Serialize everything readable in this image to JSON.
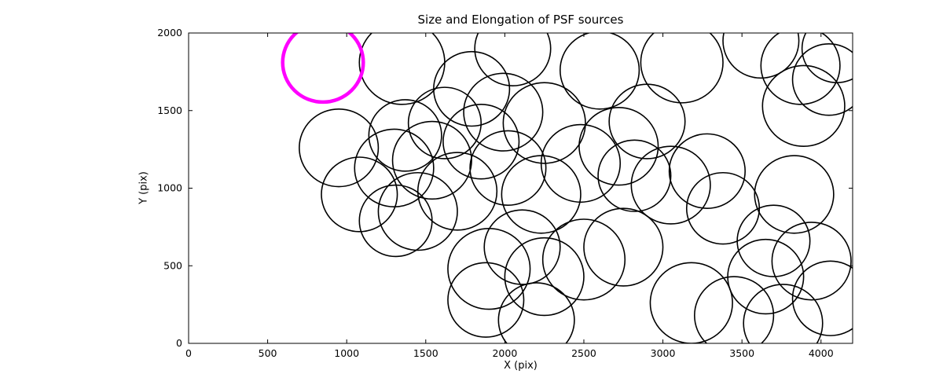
{
  "title": "Size and Elongation of PSF sources",
  "xlabel": "X (pix)",
  "ylabel": "Y (pix)",
  "chart_data": {
    "type": "scatter",
    "title": "Size and Elongation of PSF sources",
    "xlabel": "X (pix)",
    "ylabel": "Y (pix)",
    "xlim": [
      0,
      4200
    ],
    "ylim": [
      0,
      2000
    ],
    "xticks": [
      0,
      500,
      1000,
      1500,
      2000,
      2500,
      3000,
      3500,
      4000
    ],
    "yticks": [
      0,
      500,
      1000,
      1500,
      2000
    ],
    "grid": false,
    "legend": "none",
    "circle_color": "#000000",
    "circle_linewidth": 1.6,
    "highlight_color": "#ff00ff",
    "highlight_linewidth": 4.5,
    "circles": [
      {
        "x": 1350,
        "y": 1810,
        "r": 270
      },
      {
        "x": 1790,
        "y": 1640,
        "r": 240
      },
      {
        "x": 2050,
        "y": 1900,
        "r": 240
      },
      {
        "x": 1990,
        "y": 1490,
        "r": 250
      },
      {
        "x": 1850,
        "y": 1300,
        "r": 240
      },
      {
        "x": 2250,
        "y": 1420,
        "r": 260
      },
      {
        "x": 2600,
        "y": 1760,
        "r": 250
      },
      {
        "x": 2900,
        "y": 1430,
        "r": 240
      },
      {
        "x": 3120,
        "y": 1810,
        "r": 260
      },
      {
        "x": 3620,
        "y": 1950,
        "r": 240
      },
      {
        "x": 3870,
        "y": 1790,
        "r": 250
      },
      {
        "x": 3890,
        "y": 1530,
        "r": 260
      },
      {
        "x": 4050,
        "y": 1700,
        "r": 230
      },
      {
        "x": 4100,
        "y": 1900,
        "r": 220
      },
      {
        "x": 950,
        "y": 1260,
        "r": 250
      },
      {
        "x": 1080,
        "y": 960,
        "r": 240
      },
      {
        "x": 1300,
        "y": 1130,
        "r": 250
      },
      {
        "x": 1370,
        "y": 1340,
        "r": 230
      },
      {
        "x": 1540,
        "y": 1180,
        "r": 250
      },
      {
        "x": 1450,
        "y": 850,
        "r": 250
      },
      {
        "x": 1310,
        "y": 790,
        "r": 230
      },
      {
        "x": 1700,
        "y": 980,
        "r": 250
      },
      {
        "x": 1620,
        "y": 1420,
        "r": 230
      },
      {
        "x": 2020,
        "y": 1130,
        "r": 240
      },
      {
        "x": 2230,
        "y": 960,
        "r": 250
      },
      {
        "x": 2480,
        "y": 1160,
        "r": 250
      },
      {
        "x": 2720,
        "y": 1270,
        "r": 250
      },
      {
        "x": 2820,
        "y": 1080,
        "r": 230
      },
      {
        "x": 3050,
        "y": 1020,
        "r": 250
      },
      {
        "x": 3280,
        "y": 1110,
        "r": 240
      },
      {
        "x": 3380,
        "y": 870,
        "r": 230
      },
      {
        "x": 1900,
        "y": 480,
        "r": 260
      },
      {
        "x": 2110,
        "y": 620,
        "r": 240
      },
      {
        "x": 2250,
        "y": 430,
        "r": 250
      },
      {
        "x": 2500,
        "y": 540,
        "r": 260
      },
      {
        "x": 2750,
        "y": 620,
        "r": 250
      },
      {
        "x": 1880,
        "y": 280,
        "r": 240
      },
      {
        "x": 2200,
        "y": 150,
        "r": 240
      },
      {
        "x": 3180,
        "y": 260,
        "r": 260
      },
      {
        "x": 3450,
        "y": 180,
        "r": 250
      },
      {
        "x": 3650,
        "y": 430,
        "r": 240
      },
      {
        "x": 3700,
        "y": 660,
        "r": 230
      },
      {
        "x": 3760,
        "y": 130,
        "r": 250
      },
      {
        "x": 3940,
        "y": 530,
        "r": 250
      },
      {
        "x": 4060,
        "y": 290,
        "r": 240
      },
      {
        "x": 3830,
        "y": 960,
        "r": 250
      },
      {
        "x": 850,
        "y": 1810,
        "r": 255,
        "color": "#ff00ff",
        "lw": 4.5
      }
    ]
  }
}
